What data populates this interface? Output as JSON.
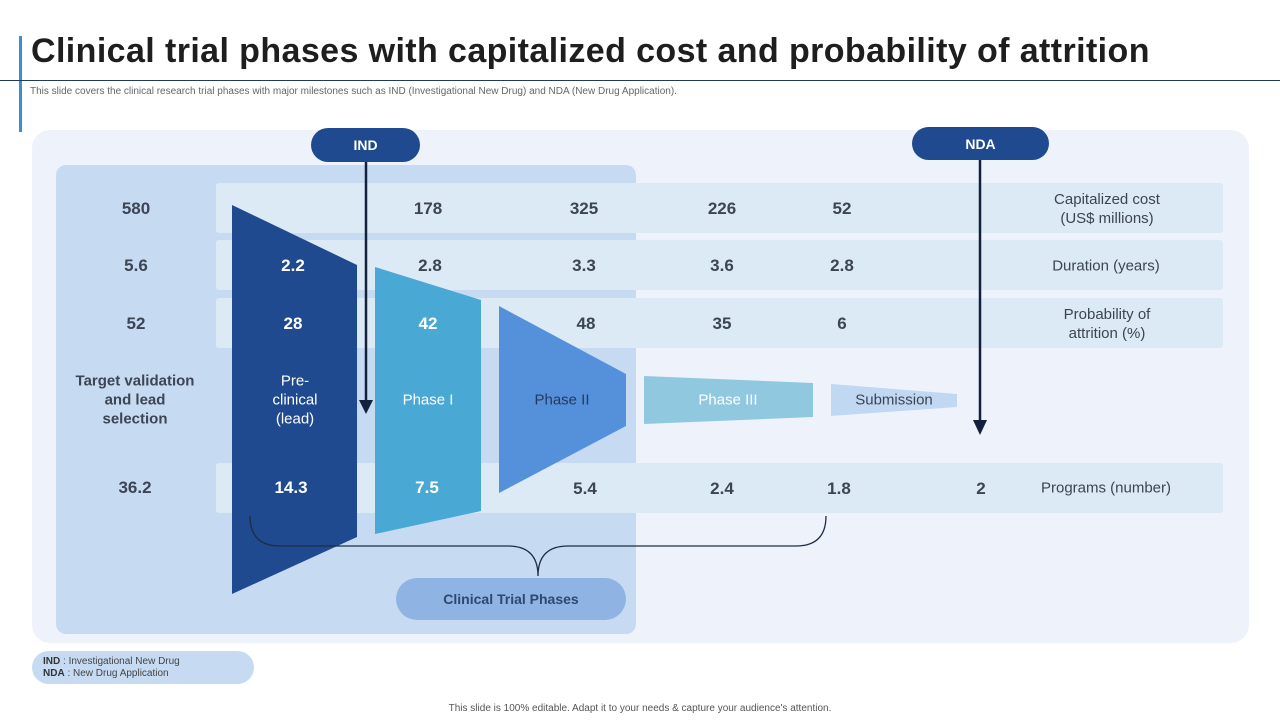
{
  "title": "Clinical trial phases with capitalized cost and probability of attrition",
  "subtitle": "This slide covers the clinical research trial phases with major milestones such as IND (Investigational New Drug) and NDA (New Drug Application).",
  "milestones": {
    "ind": "IND",
    "nda": "NDA"
  },
  "row_labels": {
    "cost_line1": "Capitalized cost",
    "cost_line2": "(US$ millions)",
    "duration": "Duration (years)",
    "attrition_line1": "Probability of",
    "attrition_line2": "attrition (%)",
    "programs": "Programs (number)"
  },
  "stages": {
    "target": {
      "line1": "Target validation",
      "line2": "and lead",
      "line3": "selection"
    },
    "preclinical": {
      "line1": "Pre-",
      "line2": "clinical",
      "line3": "(lead)"
    },
    "phase1": "Phase I",
    "phase2": "Phase II",
    "phase3": "Phase III",
    "submission": "Submission"
  },
  "values": {
    "cost": [
      "580",
      "178",
      "325",
      "226",
      "52"
    ],
    "duration": [
      "5.6",
      "2.2",
      "2.8",
      "3.3",
      "3.6",
      "2.8"
    ],
    "attrition": [
      "52",
      "28",
      "42",
      "48",
      "35",
      "6"
    ],
    "programs": [
      "36.2",
      "14.3",
      "7.5",
      "5.4",
      "2.4",
      "1.8",
      "2"
    ]
  },
  "clinical_trial_phases": "Clinical Trial Phases",
  "legend": {
    "ind_abbr": "IND",
    "ind_text": ": Investigational New Drug",
    "nda_abbr": "NDA",
    "nda_text": ": New Drug Application"
  },
  "footer": "This slide is 100% editable. Adapt it to your needs & capture your audience's attention.",
  "colors": {
    "navy": "#1f4a8f",
    "preclinical": "#1f4a8f",
    "phase1": "#4aa8d4",
    "phase2": "#5590db",
    "phase3": "#90c8e0",
    "submission": "#c0d8f2"
  }
}
